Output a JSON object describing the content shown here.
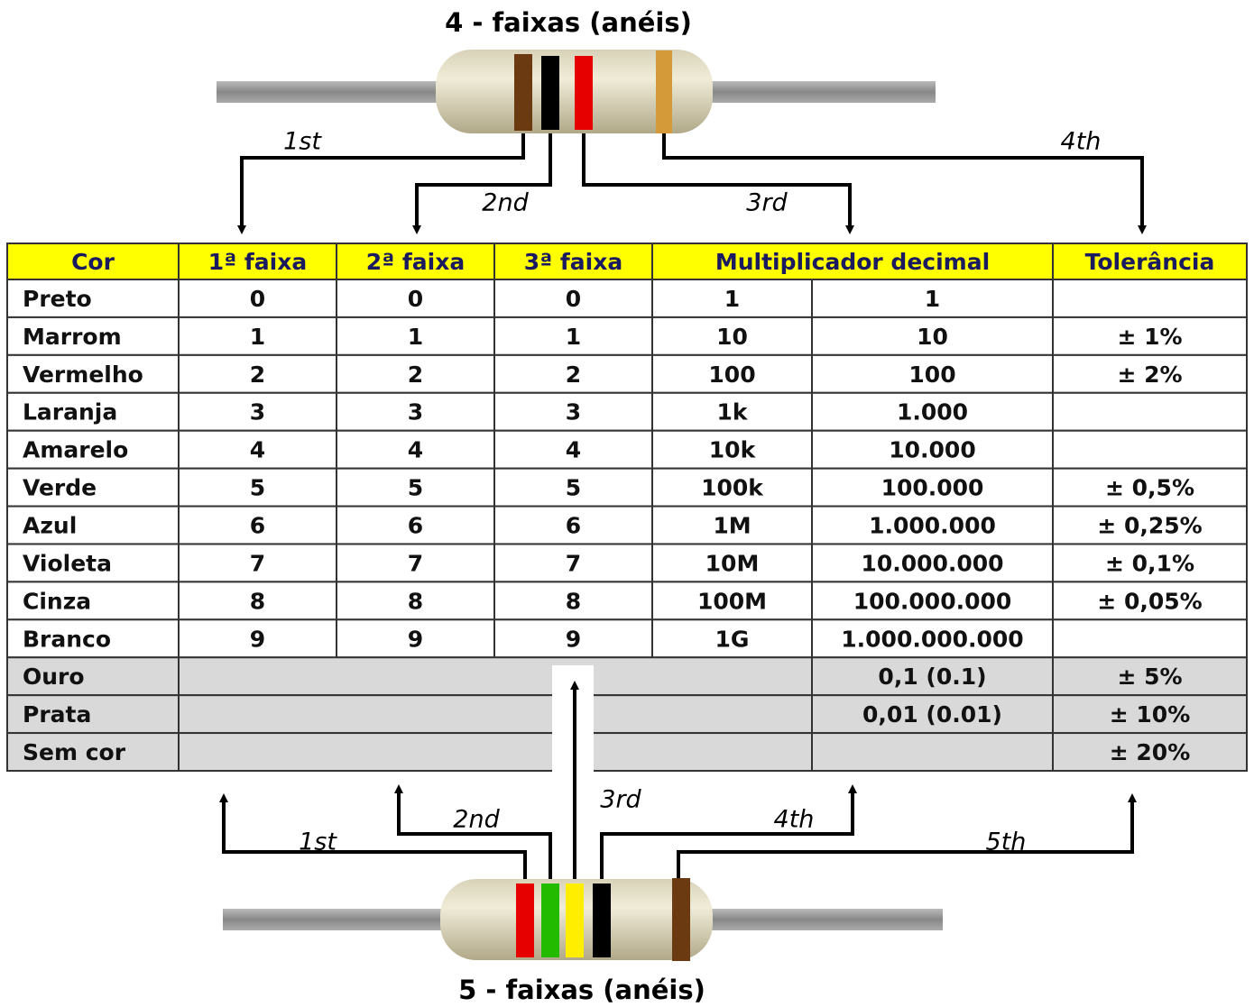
{
  "top": {
    "title": "4 - faixas (anéis)",
    "labels": [
      "1st",
      "2nd",
      "3rd",
      "4th"
    ]
  },
  "table": {
    "header": [
      "Cor",
      "1ª faixa",
      "2ª faixa",
      "3ª faixa",
      "Multiplicador decimal",
      "Tolerância"
    ],
    "rows": [
      {
        "cor": "Preto",
        "f1": "0",
        "f2": "0",
        "f3": "0",
        "mult": "1",
        "mult_decimal": "1"
      },
      {
        "cor": "Marrom",
        "f1": "1",
        "f2": "1",
        "f3": "1",
        "mult": "10",
        "mult_decimal": "10",
        "tol": "± 1%"
      },
      {
        "cor": "Vermelho",
        "f1": "2",
        "f2": "2",
        "f3": "2",
        "mult": "100",
        "mult_decimal": "100",
        "tol": "± 2%"
      },
      {
        "cor": "Laranja",
        "f1": "3",
        "f2": "3",
        "f3": "3",
        "mult": "1k",
        "mult_decimal": "1.000"
      },
      {
        "cor": "Amarelo",
        "f1": "4",
        "f2": "4",
        "f3": "4",
        "mult": "10k",
        "mult_decimal": "10.000"
      },
      {
        "cor": "Verde",
        "f1": "5",
        "f2": "5",
        "f3": "5",
        "mult": "100k",
        "mult_decimal": "100.000",
        "tol": "± 0,5%"
      },
      {
        "cor": "Azul",
        "f1": "6",
        "f2": "6",
        "f3": "6",
        "mult": "1M",
        "mult_decimal": "1.000.000",
        "tol": "± 0,25%"
      },
      {
        "cor": "Violeta",
        "f1": "7",
        "f2": "7",
        "f3": "7",
        "mult": "10M",
        "mult_decimal": "10.000.000",
        "tol": "± 0,1%"
      },
      {
        "cor": "Cinza",
        "f1": "8",
        "f2": "8",
        "f3": "8",
        "mult": "100M",
        "mult_decimal": "100.000.000",
        "tol": "± 0,05%"
      },
      {
        "cor": "Branco",
        "f1": "9",
        "f2": "9",
        "f3": "9",
        "mult": "1G",
        "mult_decimal": "1.000.000.000"
      },
      {
        "cor": "Ouro",
        "mult_decimal": "0,1 (0.1)",
        "tol": "± 5%"
      },
      {
        "cor": "Prata",
        "mult_decimal": "0,01 (0.01)",
        "tol": "± 10%"
      },
      {
        "cor": "Sem cor",
        "tol": "± 20%"
      }
    ]
  },
  "bottom": {
    "title": "5 - faixas (anéis)",
    "labels": [
      "1st",
      "2nd",
      "3rd",
      "4th",
      "5th"
    ]
  }
}
